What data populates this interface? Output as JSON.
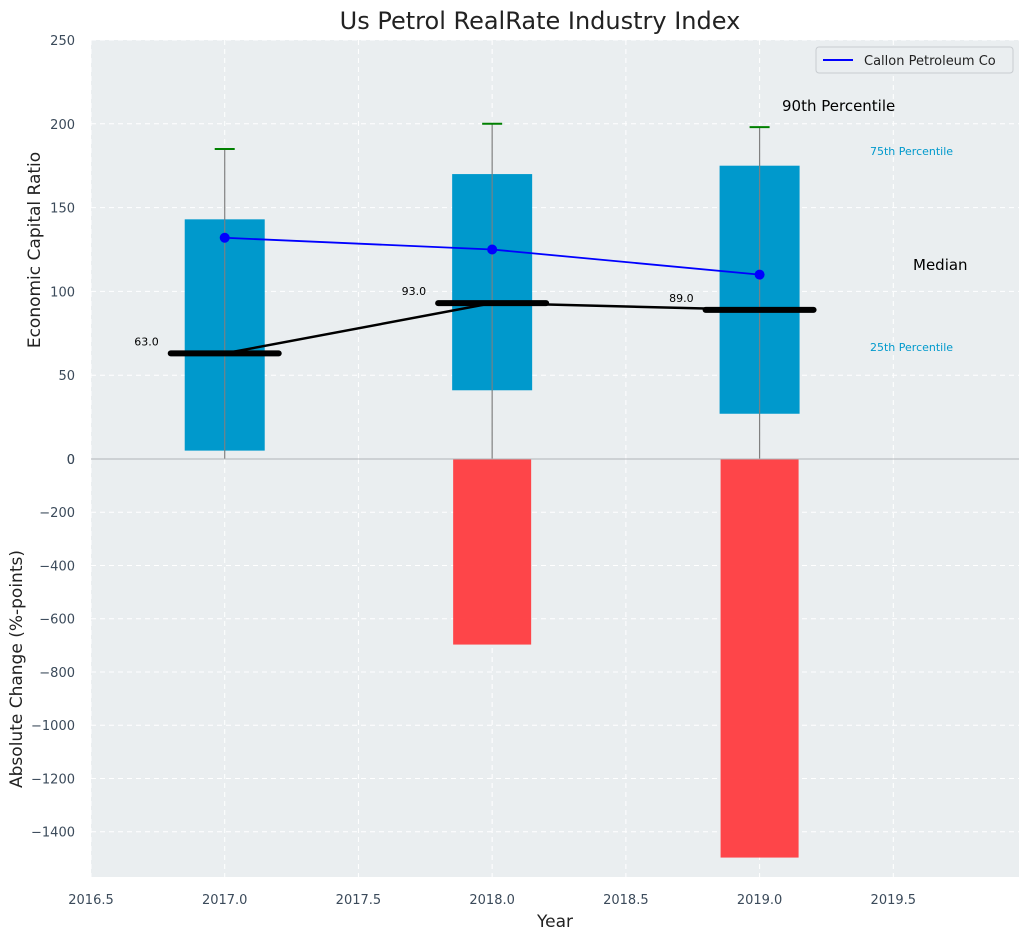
{
  "chart_data": {
    "type": "box-bar-combo",
    "title": "Us Petrol RealRate Industry Index",
    "xlabel": "Year",
    "x_ticks": [
      "2016.5",
      "2017.0",
      "2017.5",
      "2018.0",
      "2018.5",
      "2019.0",
      "2019.5"
    ],
    "xlim": [
      2016.5,
      2019.97
    ],
    "top_panel": {
      "ylabel": "Economic Capital Ratio",
      "ylim": [
        0,
        250
      ],
      "y_ticks": [
        "0",
        "50",
        "100",
        "150",
        "200",
        "250"
      ],
      "years": [
        2017,
        2018,
        2019
      ],
      "p25": [
        5,
        41,
        27
      ],
      "p75": [
        143,
        170,
        175
      ],
      "p90": [
        185,
        200,
        198
      ],
      "median": [
        63,
        93,
        89
      ],
      "median_labels": [
        "63.0",
        "93.0",
        "89.0"
      ],
      "company": {
        "name": "Callon Petroleum Co",
        "values": [
          132,
          125,
          110
        ]
      },
      "annotations": {
        "p90": "90th Percentile",
        "p75": "75th Percentile",
        "median": "Median",
        "p25": "25th Percentile"
      },
      "legend_location": "top-right"
    },
    "bottom_panel": {
      "ylabel": "Absolute Change (%-points)",
      "ylim": [
        -1570,
        0
      ],
      "y_ticks": [
        "0",
        "−200",
        "−400",
        "−600",
        "−800",
        "−1000",
        "−1200",
        "−1400"
      ],
      "y_tick_values": [
        0,
        -200,
        -400,
        -600,
        -800,
        -1000,
        -1200,
        -1400
      ],
      "years": [
        2018,
        2019
      ],
      "values": [
        -697,
        -1497
      ]
    },
    "colors": {
      "box": "#0099cc",
      "company_line": "#0000ff",
      "median": "#000000",
      "p90_cap": "#008000",
      "change_bar": "#ff3b3f",
      "panel_bg": "#eaeef0",
      "p_label": "#0099cc"
    }
  }
}
